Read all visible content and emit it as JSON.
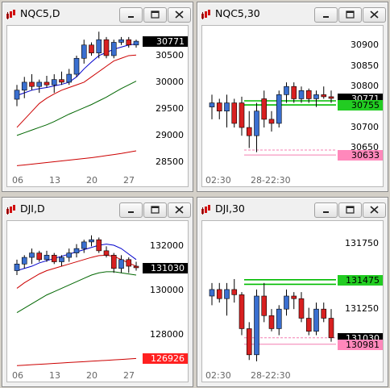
{
  "colors": {
    "up": "#3a6fd0",
    "down": "#d82020",
    "ma_fast": "#0000cc",
    "ma_mid": "#cc0000",
    "ma_slow": "#006600",
    "ma_long": "#cc0000",
    "green_line": "#00bb00",
    "pink": "#f47fb0",
    "badge_dark": "#000000",
    "badge_green": "#22cc22",
    "badge_pink": "#ff88bb",
    "badge_red": "#ff2020"
  },
  "windows": [
    {
      "title": "NQC5,D",
      "y_ticks": [
        "30500",
        "30000",
        "29500",
        "29000",
        "28500"
      ],
      "x_labels": [
        "06",
        "13",
        "20",
        "27"
      ],
      "badges": [
        {
          "text": "30771",
          "style": "dark"
        }
      ]
    },
    {
      "title": "NQC5,30",
      "y_ticks": [
        "30900",
        "30850",
        "30800",
        "30700",
        "30650"
      ],
      "x_labels": [
        "02:30",
        "28-22:30"
      ],
      "badges": [
        {
          "text": "30771",
          "style": "dark"
        },
        {
          "text": "30755",
          "style": "green"
        },
        {
          "text": "30633",
          "style": "pink"
        }
      ]
    },
    {
      "title": "DJI,D",
      "y_ticks": [
        "132000",
        "130000",
        "128000"
      ],
      "x_labels": [
        "06",
        "13",
        "20",
        "27"
      ],
      "badges": [
        {
          "text": "131030",
          "style": "dark"
        },
        {
          "text": "126926",
          "style": "red"
        }
      ]
    },
    {
      "title": "DJI,30",
      "y_ticks": [
        "131750",
        "131250"
      ],
      "x_labels": [
        "02:30",
        "28-22:30"
      ],
      "badges": [
        {
          "text": "131475",
          "style": "green"
        },
        {
          "text": "131030",
          "style": "dark"
        },
        {
          "text": "130981",
          "style": "pink"
        }
      ]
    }
  ],
  "chart_data": [
    {
      "type": "candlestick",
      "title": "NQC5,D",
      "x_tick_labels": [
        "06",
        "13",
        "20",
        "27"
      ],
      "ylim": [
        28300,
        31000
      ],
      "last": 30771,
      "candles": [
        {
          "o": 29680,
          "h": 29950,
          "l": 29550,
          "c": 29850
        },
        {
          "o": 29850,
          "h": 30100,
          "l": 29700,
          "c": 30000
        },
        {
          "o": 30000,
          "h": 30150,
          "l": 29850,
          "c": 29920
        },
        {
          "o": 29920,
          "h": 30050,
          "l": 29800,
          "c": 30000
        },
        {
          "o": 30000,
          "h": 30120,
          "l": 29900,
          "c": 29950
        },
        {
          "o": 29950,
          "h": 30150,
          "l": 29800,
          "c": 30050
        },
        {
          "o": 30050,
          "h": 30200,
          "l": 29950,
          "c": 30000
        },
        {
          "o": 30000,
          "h": 30250,
          "l": 29950,
          "c": 30150
        },
        {
          "o": 30150,
          "h": 30500,
          "l": 30100,
          "c": 30450
        },
        {
          "o": 30450,
          "h": 30800,
          "l": 30350,
          "c": 30700
        },
        {
          "o": 30700,
          "h": 30750,
          "l": 30500,
          "c": 30550
        },
        {
          "o": 30550,
          "h": 30950,
          "l": 30450,
          "c": 30800
        },
        {
          "o": 30800,
          "h": 30850,
          "l": 30450,
          "c": 30500
        },
        {
          "o": 30500,
          "h": 30800,
          "l": 30450,
          "c": 30750
        },
        {
          "o": 30750,
          "h": 30850,
          "l": 30700,
          "c": 30800
        },
        {
          "o": 30800,
          "h": 30850,
          "l": 30650,
          "c": 30700
        },
        {
          "o": 30700,
          "h": 30800,
          "l": 30650,
          "c": 30771
        }
      ],
      "lines": [
        {
          "color": "ma_fast",
          "values": [
            29750,
            29800,
            29850,
            29880,
            29900,
            29930,
            29960,
            30000,
            30100,
            30250,
            30380,
            30500,
            30560,
            30620,
            30660,
            30700,
            30720
          ]
        },
        {
          "color": "ma_mid",
          "values": [
            29150,
            29300,
            29450,
            29600,
            29700,
            29780,
            29850,
            29900,
            29950,
            30000,
            30100,
            30200,
            30300,
            30400,
            30450,
            30500,
            30510
          ]
        },
        {
          "color": "ma_slow",
          "values": [
            29000,
            29050,
            29100,
            29150,
            29200,
            29260,
            29330,
            29400,
            29460,
            29520,
            29580,
            29650,
            29720,
            29800,
            29880,
            29950,
            30020
          ]
        },
        {
          "color": "ma_long",
          "values": [
            28430,
            28445,
            28460,
            28475,
            28490,
            28505,
            28520,
            28535,
            28550,
            28565,
            28580,
            28600,
            28620,
            28640,
            28660,
            28685,
            28710
          ]
        }
      ]
    },
    {
      "type": "candlestick",
      "title": "NQC5,30",
      "x_tick_labels": [
        "02:30",
        "28-22:30"
      ],
      "ylim": [
        30590,
        30940
      ],
      "last": 30771,
      "candles": [
        {
          "o": 30750,
          "h": 30780,
          "l": 30720,
          "c": 30760
        },
        {
          "o": 30760,
          "h": 30770,
          "l": 30720,
          "c": 30740
        },
        {
          "o": 30740,
          "h": 30780,
          "l": 30700,
          "c": 30760
        },
        {
          "o": 30760,
          "h": 30770,
          "l": 30700,
          "c": 30710
        },
        {
          "o": 30760,
          "h": 30775,
          "l": 30680,
          "c": 30700
        },
        {
          "o": 30700,
          "h": 30740,
          "l": 30650,
          "c": 30680
        },
        {
          "o": 30680,
          "h": 30760,
          "l": 30640,
          "c": 30740
        },
        {
          "o": 30770,
          "h": 30790,
          "l": 30700,
          "c": 30720
        },
        {
          "o": 30720,
          "h": 30740,
          "l": 30690,
          "c": 30710
        },
        {
          "o": 30710,
          "h": 30790,
          "l": 30700,
          "c": 30780
        },
        {
          "o": 30780,
          "h": 30810,
          "l": 30760,
          "c": 30800
        },
        {
          "o": 30800,
          "h": 30810,
          "l": 30760,
          "c": 30770
        },
        {
          "o": 30770,
          "h": 30800,
          "l": 30760,
          "c": 30790
        },
        {
          "o": 30790,
          "h": 30795,
          "l": 30760,
          "c": 30770
        },
        {
          "o": 30770,
          "h": 30790,
          "l": 30750,
          "c": 30780
        },
        {
          "o": 30780,
          "h": 30800,
          "l": 30770,
          "c": 30775
        },
        {
          "o": 30775,
          "h": 30790,
          "l": 30760,
          "c": 30771
        }
      ],
      "levels": [
        {
          "color": "green_line",
          "value": 30755
        },
        {
          "color": "green_line",
          "value": 30765
        },
        {
          "color": "pink",
          "value": 30633
        },
        {
          "color": "pink",
          "value": 30645
        }
      ]
    },
    {
      "type": "candlestick",
      "title": "DJI,D",
      "x_tick_labels": [
        "06",
        "13",
        "20",
        "27"
      ],
      "ylim": [
        126500,
        133000
      ],
      "last": 131030,
      "candles": [
        {
          "o": 130900,
          "h": 131400,
          "l": 130700,
          "c": 131200
        },
        {
          "o": 131200,
          "h": 131600,
          "l": 131000,
          "c": 131500
        },
        {
          "o": 131500,
          "h": 131900,
          "l": 131200,
          "c": 131700
        },
        {
          "o": 131700,
          "h": 131800,
          "l": 131300,
          "c": 131400
        },
        {
          "o": 131400,
          "h": 131800,
          "l": 131300,
          "c": 131600
        },
        {
          "o": 131600,
          "h": 131700,
          "l": 131200,
          "c": 131300
        },
        {
          "o": 131300,
          "h": 131600,
          "l": 131100,
          "c": 131500
        },
        {
          "o": 131500,
          "h": 131900,
          "l": 131300,
          "c": 131700
        },
        {
          "o": 131700,
          "h": 132100,
          "l": 131500,
          "c": 131900
        },
        {
          "o": 131900,
          "h": 132300,
          "l": 131700,
          "c": 132200
        },
        {
          "o": 132200,
          "h": 132500,
          "l": 132000,
          "c": 132300
        },
        {
          "o": 132300,
          "h": 132400,
          "l": 131700,
          "c": 131800
        },
        {
          "o": 131800,
          "h": 132000,
          "l": 131500,
          "c": 131600
        },
        {
          "o": 131600,
          "h": 131700,
          "l": 130800,
          "c": 131000
        },
        {
          "o": 131000,
          "h": 131600,
          "l": 130800,
          "c": 131400
        },
        {
          "o": 131400,
          "h": 131500,
          "l": 130800,
          "c": 131100
        },
        {
          "o": 131100,
          "h": 131300,
          "l": 130900,
          "c": 131030
        }
      ],
      "lines": [
        {
          "color": "ma_fast",
          "values": [
            130900,
            131000,
            131100,
            131250,
            131350,
            131450,
            131550,
            131650,
            131750,
            131850,
            131950,
            132050,
            132100,
            132050,
            131900,
            131650,
            131400
          ]
        },
        {
          "color": "ma_mid",
          "values": [
            130100,
            130350,
            130550,
            130750,
            130900,
            131000,
            131100,
            131200,
            131300,
            131400,
            131500,
            131580,
            131600,
            131550,
            131400,
            131250,
            131100
          ]
        },
        {
          "color": "ma_slow",
          "values": [
            129000,
            129200,
            129400,
            129600,
            129800,
            129950,
            130100,
            130250,
            130400,
            130550,
            130700,
            130800,
            130850,
            130850,
            130800,
            130750,
            130700
          ]
        },
        {
          "color": "ma_long",
          "values": [
            126600,
            126620,
            126640,
            126660,
            126680,
            126700,
            126720,
            126740,
            126760,
            126780,
            126800,
            126820,
            126840,
            126860,
            126880,
            126900,
            126926
          ]
        }
      ]
    },
    {
      "type": "candlestick",
      "title": "DJI,30",
      "x_tick_labels": [
        "02:30",
        "28-22:30"
      ],
      "ylim": [
        130800,
        131900
      ],
      "last": 131030,
      "candles": [
        {
          "o": 131350,
          "h": 131450,
          "l": 131280,
          "c": 131400
        },
        {
          "o": 131400,
          "h": 131450,
          "l": 131300,
          "c": 131330
        },
        {
          "o": 131330,
          "h": 131450,
          "l": 131200,
          "c": 131400
        },
        {
          "o": 131400,
          "h": 131480,
          "l": 131300,
          "c": 131360
        },
        {
          "o": 131360,
          "h": 131380,
          "l": 131050,
          "c": 131100
        },
        {
          "o": 131100,
          "h": 131150,
          "l": 130860,
          "c": 130900
        },
        {
          "o": 130900,
          "h": 131400,
          "l": 130850,
          "c": 131350
        },
        {
          "o": 131350,
          "h": 131450,
          "l": 131150,
          "c": 131200
        },
        {
          "o": 131200,
          "h": 131250,
          "l": 131080,
          "c": 131100
        },
        {
          "o": 131100,
          "h": 131280,
          "l": 131050,
          "c": 131250
        },
        {
          "o": 131250,
          "h": 131400,
          "l": 131200,
          "c": 131350
        },
        {
          "o": 131350,
          "h": 131380,
          "l": 131250,
          "c": 131330
        },
        {
          "o": 131330,
          "h": 131380,
          "l": 131150,
          "c": 131180
        },
        {
          "o": 131180,
          "h": 131260,
          "l": 131050,
          "c": 131080
        },
        {
          "o": 131080,
          "h": 131300,
          "l": 131050,
          "c": 131250
        },
        {
          "o": 131250,
          "h": 131300,
          "l": 131150,
          "c": 131180
        },
        {
          "o": 131180,
          "h": 131250,
          "l": 131000,
          "c": 131030
        }
      ],
      "levels": [
        {
          "color": "green_line",
          "value": 131475
        },
        {
          "color": "green_line",
          "value": 131440
        },
        {
          "color": "pink",
          "value": 130981
        },
        {
          "color": "pink",
          "value": 131030
        }
      ]
    }
  ]
}
